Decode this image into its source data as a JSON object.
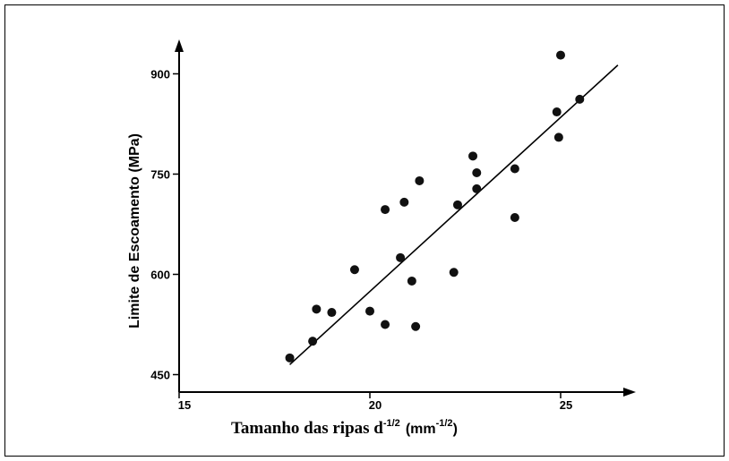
{
  "chart_data": {
    "type": "scatter",
    "xlabel_main": "Tamanho das ripas d",
    "xlabel_exp": "-1/2",
    "xlabel_unit_open": "(mm",
    "xlabel_unit_exp": "-1/2",
    "xlabel_unit_close": ")",
    "ylabel": "Limite de Escoamento (MPa)",
    "xlim": [
      15,
      26.8
    ],
    "ylim": [
      430,
      950
    ],
    "x_ticks": [
      15,
      20,
      25
    ],
    "y_ticks": [
      450,
      600,
      750,
      900
    ],
    "points": [
      {
        "x": 17.9,
        "y": 475
      },
      {
        "x": 18.5,
        "y": 500
      },
      {
        "x": 18.6,
        "y": 548
      },
      {
        "x": 19.0,
        "y": 543
      },
      {
        "x": 19.6,
        "y": 607
      },
      {
        "x": 20.0,
        "y": 545
      },
      {
        "x": 20.4,
        "y": 525
      },
      {
        "x": 20.4,
        "y": 697
      },
      {
        "x": 20.8,
        "y": 625
      },
      {
        "x": 20.9,
        "y": 708
      },
      {
        "x": 21.1,
        "y": 590
      },
      {
        "x": 21.2,
        "y": 522
      },
      {
        "x": 21.3,
        "y": 740
      },
      {
        "x": 22.2,
        "y": 603
      },
      {
        "x": 22.3,
        "y": 704
      },
      {
        "x": 22.7,
        "y": 777
      },
      {
        "x": 22.8,
        "y": 752
      },
      {
        "x": 22.8,
        "y": 728
      },
      {
        "x": 23.8,
        "y": 758
      },
      {
        "x": 23.8,
        "y": 685
      },
      {
        "x": 24.9,
        "y": 843
      },
      {
        "x": 24.95,
        "y": 805
      },
      {
        "x": 25.0,
        "y": 928
      },
      {
        "x": 25.5,
        "y": 862
      }
    ],
    "fit_line": {
      "x": [
        17.9,
        26.5
      ],
      "y": [
        465,
        913
      ]
    },
    "grid": false,
    "legend": "none"
  }
}
